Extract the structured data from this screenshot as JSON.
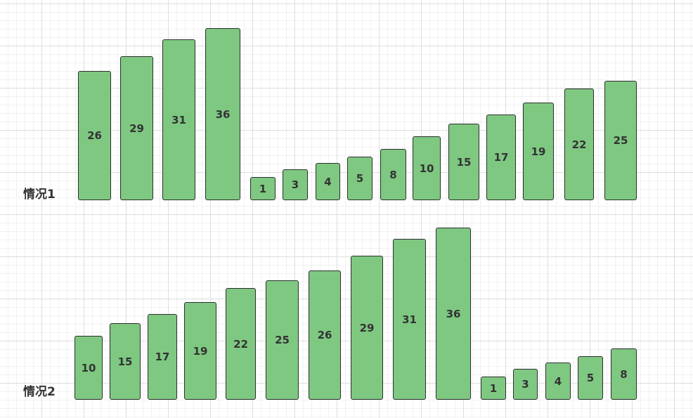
{
  "colors": {
    "bar_fill": "#7ec882",
    "bar_border": "#2e2e2e",
    "text": "#333333",
    "grid": "#dedede"
  },
  "cases": [
    {
      "label": "情况1",
      "values": [
        26,
        29,
        31,
        36,
        1,
        3,
        4,
        5,
        8,
        10,
        15,
        17,
        19,
        22,
        25
      ]
    },
    {
      "label": "情况2",
      "values": [
        10,
        15,
        17,
        19,
        22,
        25,
        26,
        29,
        31,
        36,
        1,
        3,
        4,
        5,
        8
      ]
    }
  ]
}
